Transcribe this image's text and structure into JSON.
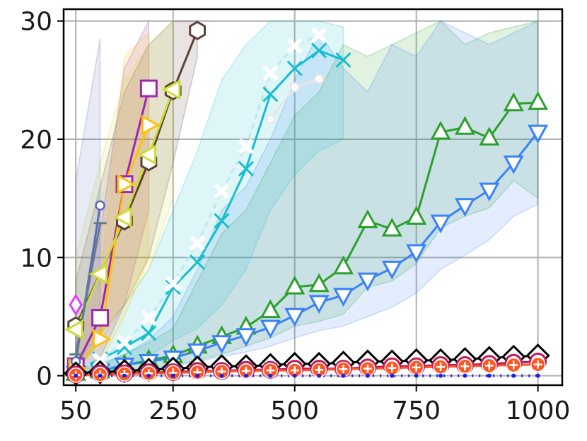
{
  "chart_data": {
    "type": "line",
    "title": "",
    "xlabel": "",
    "ylabel": "",
    "xlim": [
      25,
      1050
    ],
    "ylim": [
      -0.8,
      31
    ],
    "x_ticks": [
      50,
      250,
      500,
      750,
      1000
    ],
    "x_tick_labels": [
      "50",
      "250",
      "500",
      "750",
      "1000"
    ],
    "y_ticks": [
      0,
      10,
      20,
      30
    ],
    "y_tick_labels": [
      "0",
      "10",
      "20",
      "30"
    ],
    "grid": true,
    "legend": "none",
    "series": [
      {
        "color": "#2ca02c",
        "marker": "triangle-up",
        "band": true,
        "x": [
          50,
          100,
          150,
          200,
          250,
          300,
          350,
          400,
          450,
          500,
          550,
          600,
          650,
          700,
          750,
          800,
          850,
          900,
          950,
          1000
        ],
        "y": [
          0.2,
          0.4,
          0.9,
          1.3,
          1.7,
          2.5,
          3.3,
          4.1,
          5.5,
          7.5,
          7.7,
          9.2,
          13.1,
          12.4,
          13.4,
          20.6,
          21.0,
          20.1,
          23.0,
          23.1
        ],
        "lower": [
          0.1,
          0.2,
          0.4,
          0.6,
          0.9,
          1.3,
          1.8,
          2.5,
          3.2,
          4.2,
          4.6,
          5.2,
          7.5,
          8.0,
          9.5,
          12.5,
          13.5,
          14.2,
          16.5,
          15.0
        ],
        "upper": [
          0.4,
          0.8,
          1.8,
          2.8,
          4.0,
          8.0,
          12.0,
          14.0,
          18.0,
          22.0,
          24.0,
          28.0,
          27.0,
          28.0,
          29.0,
          30.0,
          28.0,
          29.0,
          29.5,
          30.0
        ]
      },
      {
        "color": "#3b82f6",
        "marker": "triangle-down",
        "band": true,
        "x": [
          50,
          100,
          150,
          200,
          250,
          300,
          350,
          400,
          450,
          500,
          550,
          600,
          650,
          700,
          750,
          800,
          850,
          900,
          950,
          1000
        ],
        "y": [
          0.2,
          0.4,
          0.9,
          1.2,
          1.5,
          2.1,
          2.8,
          3.4,
          4.1,
          5.1,
          6.2,
          6.8,
          8.1,
          9.1,
          10.5,
          13.0,
          14.4,
          15.7,
          18.0,
          20.6
        ],
        "lower": [
          0.1,
          0.2,
          0.4,
          0.6,
          0.8,
          1.2,
          1.6,
          2.0,
          2.5,
          3.2,
          3.8,
          4.2,
          5.0,
          5.8,
          7.0,
          9.0,
          10.2,
          11.5,
          13.5,
          14.5
        ],
        "upper": [
          0.5,
          1.0,
          1.8,
          3.0,
          5.0,
          9.0,
          14.0,
          16.0,
          20.0,
          25.0,
          29.0,
          26.0,
          24.0,
          28.0,
          27.0,
          30.0,
          29.0,
          28.0,
          29.0,
          30.0
        ]
      },
      {
        "color": "#17becf",
        "marker": "x",
        "band": true,
        "x": [
          50,
          100,
          150,
          200,
          250,
          300,
          350,
          400,
          450,
          500,
          550,
          600
        ],
        "y": [
          0.5,
          1.4,
          2.4,
          3.6,
          7.5,
          9.6,
          13.1,
          17.5,
          23.8,
          26.0,
          27.5,
          26.7
        ],
        "lower": [
          0.2,
          0.6,
          1.0,
          1.6,
          3.0,
          4.0,
          6.0,
          9.0,
          14.0,
          17.0,
          19.0,
          20.0
        ],
        "upper": [
          1.0,
          3.0,
          6.0,
          9.0,
          14.0,
          19.0,
          25.0,
          28.0,
          30.0,
          30.0,
          30.0,
          29.5
        ]
      },
      {
        "color": "#ffffff",
        "stroke": "#bde7ef",
        "marker": "cross-x",
        "band": false,
        "x": [
          50,
          100,
          150,
          200,
          250,
          300,
          350,
          400,
          450,
          500,
          550
        ],
        "y": [
          0.6,
          1.3,
          2.8,
          4.9,
          7.8,
          11.2,
          15.6,
          19.4,
          25.6,
          27.9,
          28.8
        ]
      },
      {
        "color": "#e6e6e6",
        "marker": "small-circle",
        "band": false,
        "x": [
          450,
          500,
          550
        ],
        "y": [
          21.7,
          24.4,
          25.1
        ]
      },
      {
        "color": "#5d4037",
        "marker": "hexagon",
        "band": true,
        "x": [
          50,
          150,
          200,
          250,
          300
        ],
        "y": [
          4.2,
          13.1,
          18.1,
          24.1,
          29.2
        ],
        "lower": [
          1.0,
          6.0,
          10.0,
          18.0,
          27.0
        ],
        "upper": [
          8.0,
          24.0,
          28.0,
          30.0,
          30.0
        ]
      },
      {
        "color": "#9c27b0",
        "marker": "square",
        "band": true,
        "x": [
          50,
          100,
          150,
          200
        ],
        "y": [
          0.8,
          4.9,
          16.2,
          24.3
        ],
        "lower": [
          0.2,
          1.5,
          6.0,
          14.0
        ],
        "upper": [
          3.0,
          12.0,
          26.0,
          30.0
        ]
      },
      {
        "color": "#ffc107",
        "marker": "triangle-right",
        "band": true,
        "x": [
          50,
          100,
          150,
          200
        ],
        "y": [
          0.6,
          3.1,
          16.2,
          21.2
        ],
        "lower": [
          0.2,
          1.0,
          5.0,
          10.0
        ],
        "upper": [
          2.0,
          8.0,
          27.0,
          29.0
        ]
      },
      {
        "color": "#cddc39",
        "marker": "triangle-left",
        "band": true,
        "x": [
          50,
          100,
          150,
          200,
          250
        ],
        "y": [
          3.9,
          8.6,
          13.4,
          18.7,
          24.2
        ],
        "lower": [
          1.0,
          3.0,
          6.0,
          9.0,
          15.0
        ],
        "upper": [
          10.0,
          18.0,
          25.0,
          28.0,
          30.0
        ]
      },
      {
        "color": "#5c6bc0",
        "marker": "small-circle",
        "band": true,
        "x": [
          50,
          100
        ],
        "y": [
          1.2,
          14.4
        ],
        "lower": [
          0.3,
          3.0
        ],
        "upper": [
          16.5,
          28.5
        ]
      },
      {
        "color": "#607d8b",
        "marker": "tick",
        "band": false,
        "x": [
          50,
          100
        ],
        "y": [
          1.8,
          12.9
        ]
      },
      {
        "color": "#e040fb",
        "marker": "diamond",
        "band": false,
        "x": [
          50
        ],
        "y": [
          6.0
        ]
      },
      {
        "color": "#000000",
        "marker": "diamond-open",
        "band": false,
        "x": [
          50,
          100,
          150,
          200,
          250,
          300,
          350,
          400,
          450,
          500,
          550,
          600,
          650,
          700,
          750,
          800,
          850,
          900,
          950,
          1000
        ],
        "y": [
          0.2,
          0.3,
          0.4,
          0.5,
          0.6,
          0.7,
          0.8,
          0.8,
          0.9,
          1.0,
          1.0,
          1.1,
          1.2,
          1.2,
          1.3,
          1.3,
          1.4,
          1.5,
          1.6,
          1.7
        ]
      },
      {
        "color": "#c2185b",
        "marker": "circle",
        "band": false,
        "x": [
          50,
          100,
          150,
          200,
          250,
          300,
          350,
          400,
          450,
          500,
          550,
          600,
          650,
          700,
          750,
          800,
          850,
          900,
          950,
          1000
        ],
        "y": [
          0.1,
          0.2,
          0.2,
          0.3,
          0.3,
          0.4,
          0.4,
          0.5,
          0.5,
          0.6,
          0.6,
          0.6,
          0.7,
          0.8,
          0.8,
          0.9,
          0.9,
          1.0,
          1.1,
          1.2
        ]
      },
      {
        "color": "#ff5722",
        "marker": "plus-circle",
        "band": false,
        "x": [
          50,
          100,
          150,
          200,
          250,
          300,
          350,
          400,
          450,
          500,
          550,
          600,
          650,
          700,
          750,
          800,
          850,
          900,
          950,
          1000
        ],
        "y": [
          0.05,
          0.1,
          0.15,
          0.2,
          0.25,
          0.3,
          0.35,
          0.4,
          0.45,
          0.45,
          0.5,
          0.55,
          0.6,
          0.65,
          0.7,
          0.75,
          0.8,
          0.85,
          0.9,
          0.95
        ]
      },
      {
        "color": "#1f1fe0",
        "marker": "dot",
        "band": false,
        "x": [
          50,
          100,
          150,
          200,
          250,
          300,
          350,
          400,
          450,
          500,
          550,
          600,
          650,
          700,
          750,
          800,
          850,
          900,
          950,
          1000
        ],
        "y": [
          0,
          0,
          0,
          0,
          0,
          0,
          0,
          0,
          0,
          0,
          0,
          0,
          0,
          0,
          0,
          0,
          0,
          0,
          0,
          0
        ]
      }
    ]
  }
}
